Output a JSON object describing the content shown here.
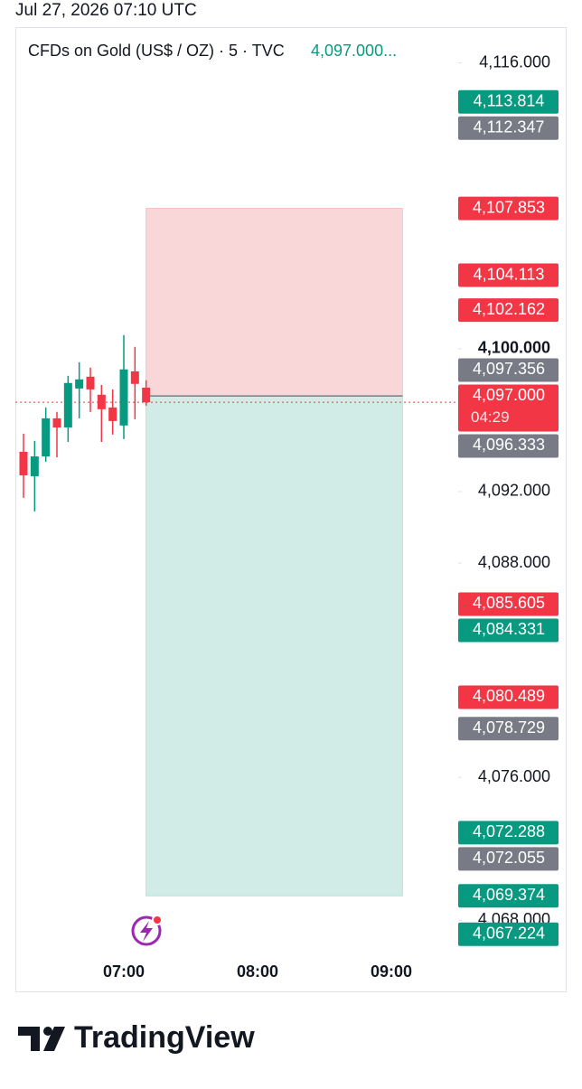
{
  "timestamp": "Jul 27, 2026 07:10 UTC",
  "chart_data": {
    "type": "candlestick",
    "title": "CFDs on Gold (US$ / OZ) · 5 · TVC",
    "last_price_label": "4,097.000...",
    "x": [
      "06:15",
      "06:20",
      "06:25",
      "06:30",
      "06:35",
      "06:40",
      "06:45",
      "06:50",
      "06:55",
      "07:00",
      "07:05",
      "07:10"
    ],
    "open": [
      4094.23,
      4092.86,
      4093.97,
      4096.1,
      4095.59,
      4097.77,
      4098.43,
      4097.42,
      4096.71,
      4095.7,
      4098.73,
      4097.82
    ],
    "high": [
      4095.24,
      4094.84,
      4096.71,
      4096.46,
      4098.48,
      4099.24,
      4098.94,
      4097.97,
      4097.72,
      4100.76,
      4100.1,
      4098.23
    ],
    "low": [
      4091.65,
      4090.89,
      4093.67,
      4093.92,
      4094.78,
      4096.1,
      4096.46,
      4094.78,
      4095.19,
      4094.94,
      4096.05,
      4096.81
    ],
    "close": [
      4092.91,
      4093.97,
      4096.1,
      4095.59,
      4098.08,
      4098.28,
      4097.72,
      4096.61,
      4095.95,
      4098.84,
      4098.03,
      4097.0
    ],
    "up_color": "#089981",
    "down_color": "#f23645",
    "xticks": [
      "07:00",
      "08:00",
      "09:00"
    ],
    "ylim": [
      4066.4,
      4118
    ],
    "yticks": [
      {
        "value": 4116,
        "label": "4,116.000"
      },
      {
        "value": 4100,
        "label": "4,100.000"
      },
      {
        "value": 4092,
        "label": "4,092.000"
      },
      {
        "value": 4088,
        "label": "4,088.000"
      },
      {
        "value": 4076,
        "label": "4,076.000"
      },
      {
        "value": 4068,
        "label": "4,068.000"
      }
    ],
    "position": {
      "start": "07:10",
      "end": "09:05",
      "stop": 4107.853,
      "entry": 4097.356,
      "target": 4069.374,
      "loss_color": "#f9d7d9",
      "profit_color": "#d1ece6"
    },
    "current_price": 4097.0,
    "countdown": "04:29",
    "price_labels": {
      "values": [
        4113.814,
        4112.347,
        4107.853,
        4104.113,
        4102.162,
        4097.356,
        4097.0,
        4096.333,
        4085.605,
        4084.331,
        4080.489,
        4078.729,
        4072.288,
        4072.055,
        4069.374,
        4067.224
      ],
      "value_labels": [
        "4,113.814",
        "4,112.347",
        "4,107.853",
        "4,104.113",
        "4,102.162",
        "4,097.356",
        "4,097.000",
        "4,096.333",
        "4,085.605",
        "4,084.331",
        "4,080.489",
        "4,078.729",
        "4,072.288",
        "4,072.055",
        "4,069.374",
        "4,067.224"
      ],
      "colors": [
        "#089981",
        "#787b86",
        "#f23645",
        "#f23645",
        "#f23645",
        "#787b86",
        "#f23645",
        "#787b86",
        "#f23645",
        "#089981",
        "#f23645",
        "#787b86",
        "#089981",
        "#787b86",
        "#089981",
        "#089981"
      ]
    }
  },
  "brand": "TradingView"
}
